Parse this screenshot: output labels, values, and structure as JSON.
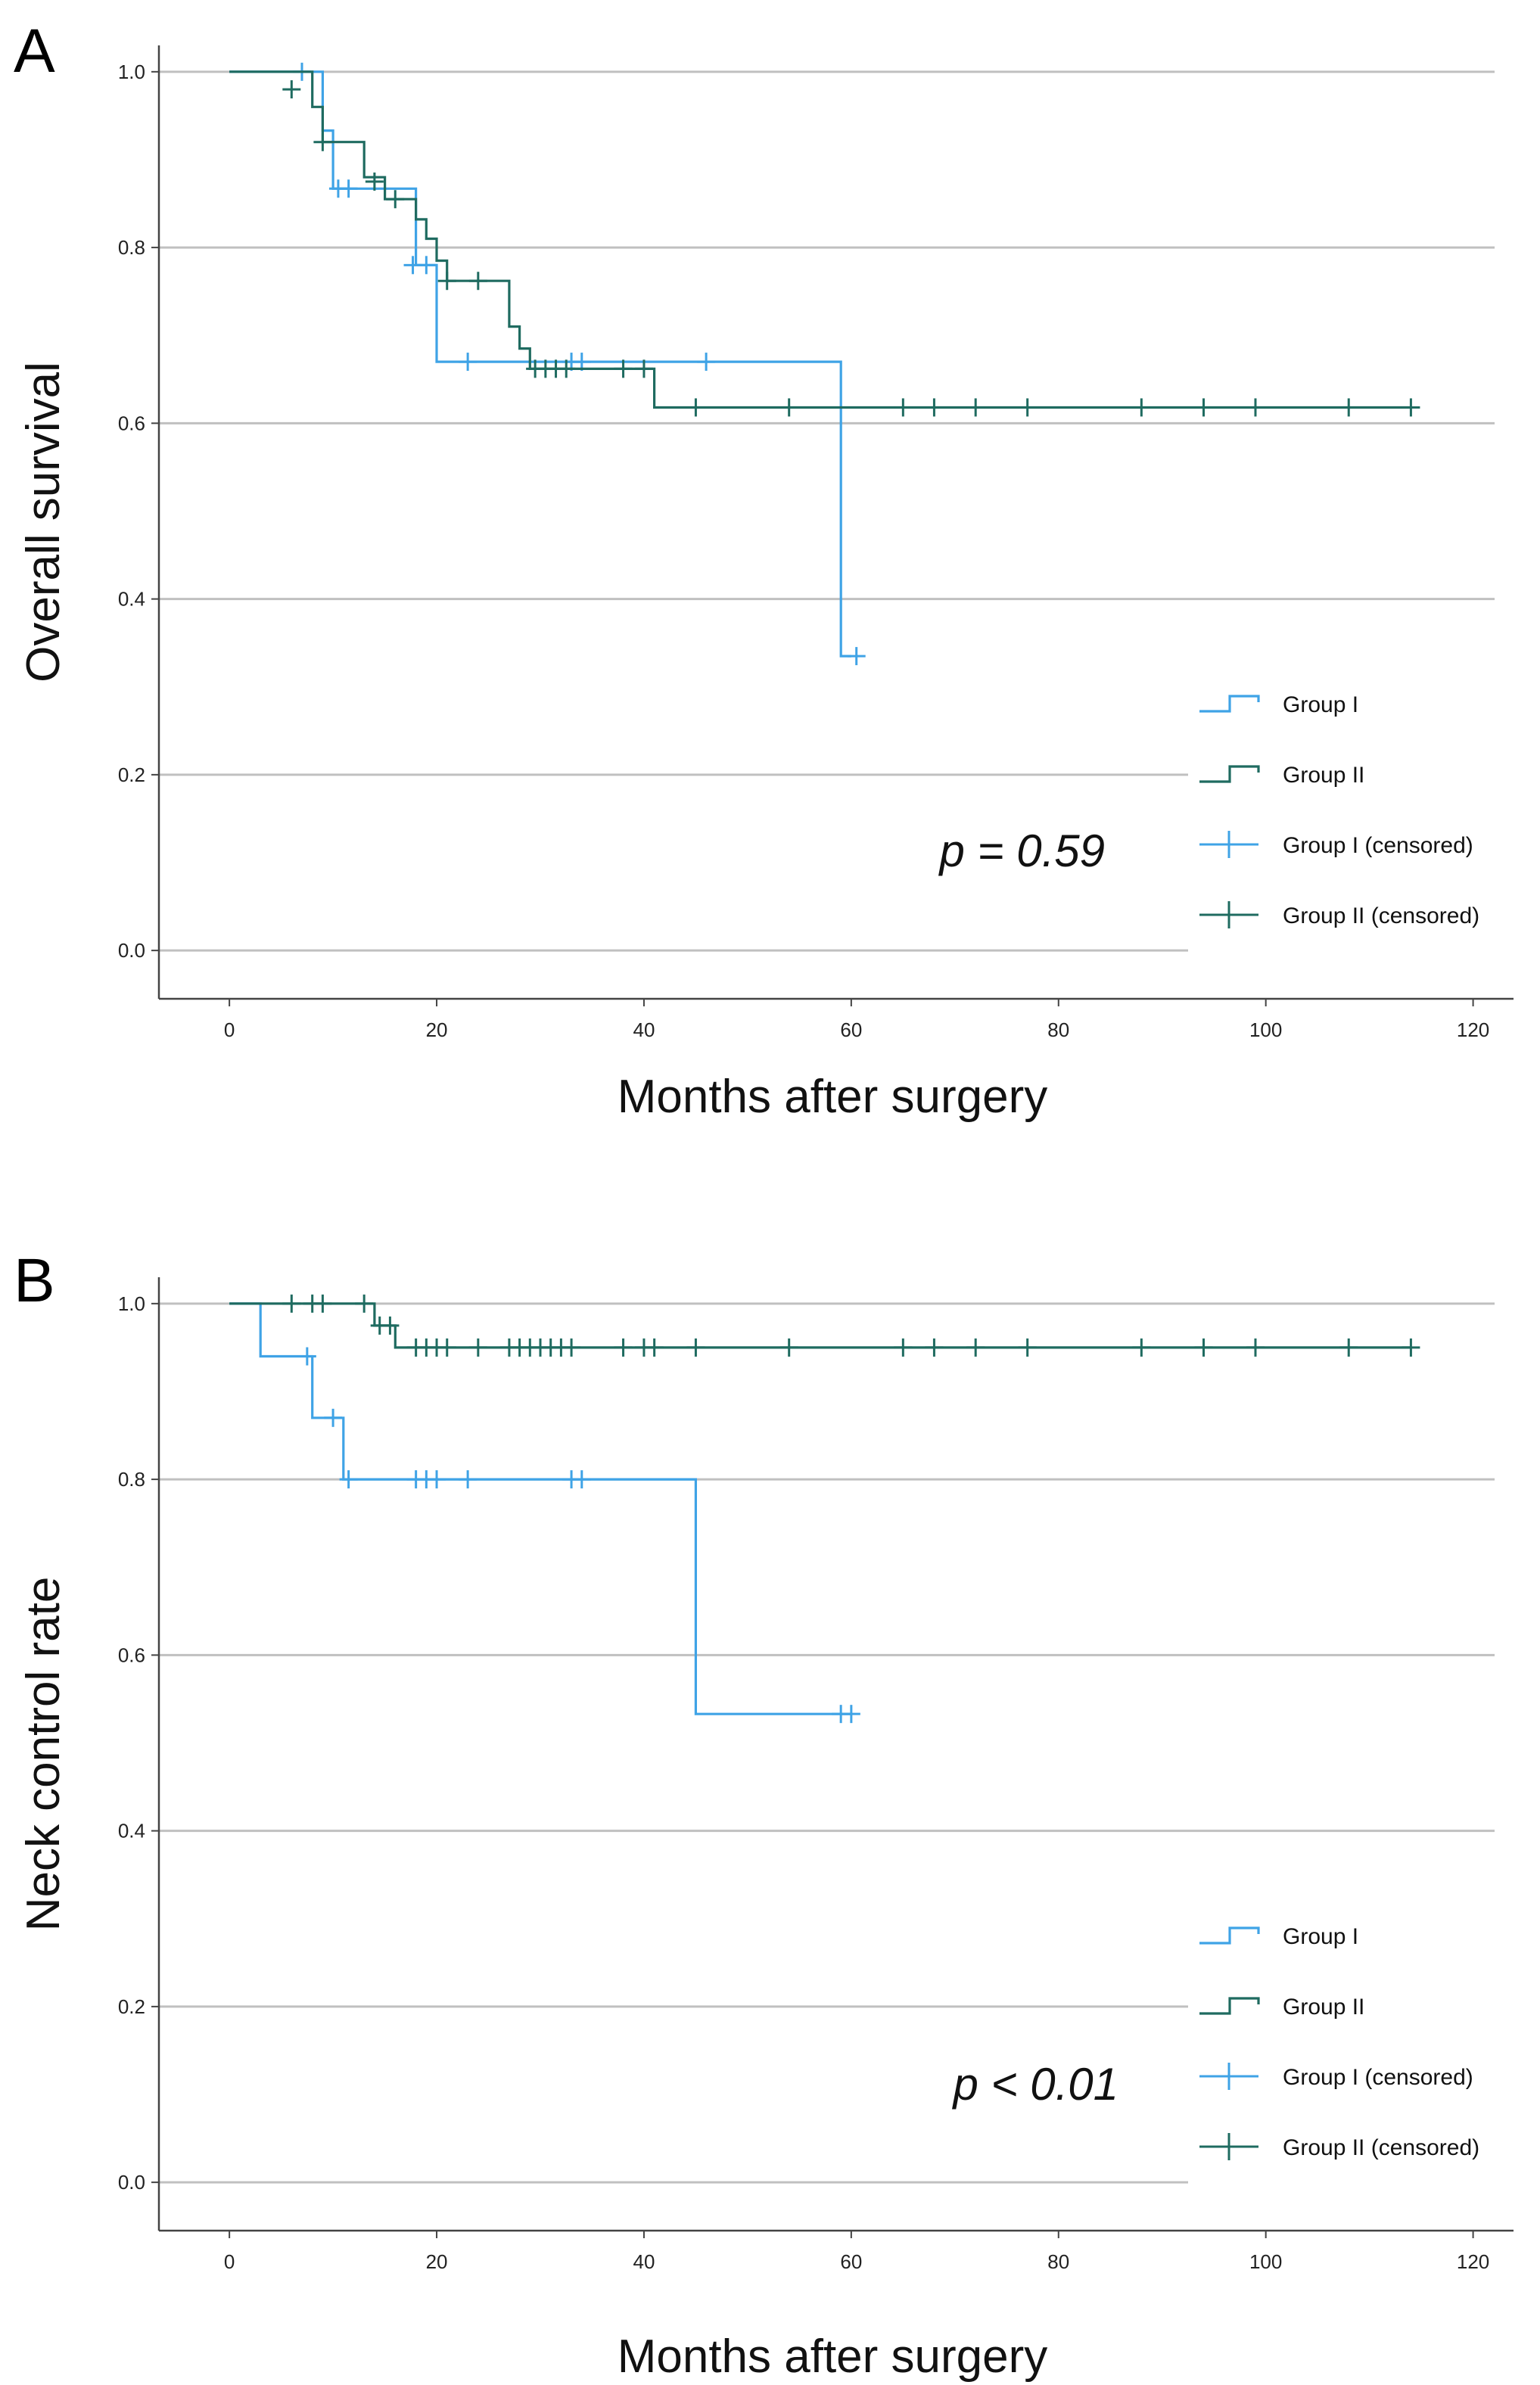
{
  "colors": {
    "group1": "#3FA3E6",
    "group2": "#1F6B60",
    "grid": "#C0C0C0",
    "axis": "#444444"
  },
  "chart_data": [
    {
      "panel": "A",
      "type": "line",
      "subtype": "kaplan-meier",
      "xlabel": "Months after surgery",
      "ylabel": "Overall survival",
      "xlim": [
        -6.8,
        123.9
      ],
      "ylim": [
        -0.055,
        1.03
      ],
      "xticks": [
        "0",
        "20",
        "40",
        "60",
        "80",
        "100",
        "120"
      ],
      "yticks": [
        "0.0",
        "0.2",
        "0.4",
        "0.6",
        "0.8",
        "1.0"
      ],
      "pvalue": "p = 0.59",
      "legend": {
        "position": "bottom-right",
        "entries": [
          "Group I",
          "Group II",
          "Group I (censored)",
          "Group II (censored)"
        ]
      },
      "series": [
        {
          "name": "Group I",
          "step": [
            [
              0,
              1.0
            ],
            [
              9,
              1.0
            ],
            [
              9,
              0.933
            ],
            [
              10,
              0.933
            ],
            [
              10,
              0.867
            ],
            [
              18,
              0.867
            ],
            [
              18,
              0.78
            ],
            [
              20,
              0.78
            ],
            [
              20,
              0.67
            ],
            [
              59,
              0.67
            ],
            [
              59,
              0.335
            ],
            [
              60,
              0.335
            ]
          ],
          "censored": [
            [
              7,
              1.0
            ],
            [
              10.5,
              0.867
            ],
            [
              11.5,
              0.867
            ],
            [
              17.7,
              0.78
            ],
            [
              19,
              0.78
            ],
            [
              23,
              0.67
            ],
            [
              33,
              0.67
            ],
            [
              34,
              0.67
            ],
            [
              46,
              0.67
            ],
            [
              60.5,
              0.335
            ]
          ]
        },
        {
          "name": "Group II",
          "step": [
            [
              0,
              1.0
            ],
            [
              8,
              1.0
            ],
            [
              8,
              0.96
            ],
            [
              9,
              0.96
            ],
            [
              9,
              0.92
            ],
            [
              13,
              0.92
            ],
            [
              13,
              0.88
            ],
            [
              15,
              0.88
            ],
            [
              15,
              0.855
            ],
            [
              18,
              0.855
            ],
            [
              18,
              0.832
            ],
            [
              19,
              0.832
            ],
            [
              19,
              0.81
            ],
            [
              20,
              0.81
            ],
            [
              20,
              0.785
            ],
            [
              21,
              0.785
            ],
            [
              21,
              0.762
            ],
            [
              27,
              0.762
            ],
            [
              27,
              0.71
            ],
            [
              28,
              0.71
            ],
            [
              28,
              0.685
            ],
            [
              29,
              0.685
            ],
            [
              29,
              0.662
            ],
            [
              41,
              0.662
            ],
            [
              41,
              0.618
            ],
            [
              114,
              0.618
            ]
          ],
          "censored": [
            [
              6,
              0.98
            ],
            [
              9,
              0.92
            ],
            [
              14,
              0.875
            ],
            [
              16,
              0.855
            ],
            [
              21,
              0.762
            ],
            [
              24,
              0.762
            ],
            [
              29.5,
              0.662
            ],
            [
              30.5,
              0.662
            ],
            [
              31.5,
              0.662
            ],
            [
              32.5,
              0.662
            ],
            [
              38,
              0.662
            ],
            [
              40,
              0.662
            ],
            [
              45,
              0.618
            ],
            [
              54,
              0.618
            ],
            [
              65,
              0.618
            ],
            [
              68,
              0.618
            ],
            [
              72,
              0.618
            ],
            [
              77,
              0.618
            ],
            [
              88,
              0.618
            ],
            [
              94,
              0.618
            ],
            [
              99,
              0.618
            ],
            [
              108,
              0.618
            ],
            [
              114,
              0.618
            ]
          ]
        }
      ]
    },
    {
      "panel": "B",
      "type": "line",
      "subtype": "kaplan-meier",
      "xlabel": "Months after surgery",
      "ylabel": "Neck control rate",
      "xlim": [
        -6.8,
        123.9
      ],
      "ylim": [
        -0.055,
        1.03
      ],
      "xticks": [
        "0",
        "20",
        "40",
        "60",
        "80",
        "100",
        "120"
      ],
      "yticks": [
        "0.0",
        "0.2",
        "0.4",
        "0.6",
        "0.8",
        "1.0"
      ],
      "pvalue": "p < 0.01",
      "legend": {
        "position": "bottom-right",
        "entries": [
          "Group I",
          "Group II",
          "Group I (censored)",
          "Group II (censored)"
        ]
      },
      "series": [
        {
          "name": "Group I",
          "step": [
            [
              0,
              1.0
            ],
            [
              3,
              1.0
            ],
            [
              3,
              0.94
            ],
            [
              8,
              0.94
            ],
            [
              8,
              0.87
            ],
            [
              11,
              0.87
            ],
            [
              11,
              0.8
            ],
            [
              45,
              0.8
            ],
            [
              45,
              0.533
            ],
            [
              60,
              0.533
            ]
          ],
          "censored": [
            [
              7.5,
              0.94
            ],
            [
              10,
              0.87
            ],
            [
              11.5,
              0.8
            ],
            [
              18,
              0.8
            ],
            [
              19,
              0.8
            ],
            [
              20,
              0.8
            ],
            [
              23,
              0.8
            ],
            [
              33,
              0.8
            ],
            [
              34,
              0.8
            ],
            [
              59,
              0.533
            ],
            [
              60,
              0.533
            ]
          ]
        },
        {
          "name": "Group II",
          "step": [
            [
              0,
              1.0
            ],
            [
              14,
              1.0
            ],
            [
              14,
              0.975
            ],
            [
              16,
              0.975
            ],
            [
              16,
              0.95
            ],
            [
              114,
              0.95
            ]
          ],
          "censored": [
            [
              6,
              1.0
            ],
            [
              8,
              1.0
            ],
            [
              9,
              1.0
            ],
            [
              13,
              1.0
            ],
            [
              14.5,
              0.975
            ],
            [
              15.5,
              0.975
            ],
            [
              18,
              0.95
            ],
            [
              19,
              0.95
            ],
            [
              20,
              0.95
            ],
            [
              21,
              0.95
            ],
            [
              24,
              0.95
            ],
            [
              27,
              0.95
            ],
            [
              28,
              0.95
            ],
            [
              29,
              0.95
            ],
            [
              30,
              0.95
            ],
            [
              31,
              0.95
            ],
            [
              32,
              0.95
            ],
            [
              33,
              0.95
            ],
            [
              38,
              0.95
            ],
            [
              40,
              0.95
            ],
            [
              41,
              0.95
            ],
            [
              45,
              0.95
            ],
            [
              54,
              0.95
            ],
            [
              65,
              0.95
            ],
            [
              68,
              0.95
            ],
            [
              72,
              0.95
            ],
            [
              77,
              0.95
            ],
            [
              88,
              0.95
            ],
            [
              94,
              0.95
            ],
            [
              99,
              0.95
            ],
            [
              108,
              0.95
            ],
            [
              114,
              0.95
            ]
          ]
        }
      ]
    }
  ]
}
